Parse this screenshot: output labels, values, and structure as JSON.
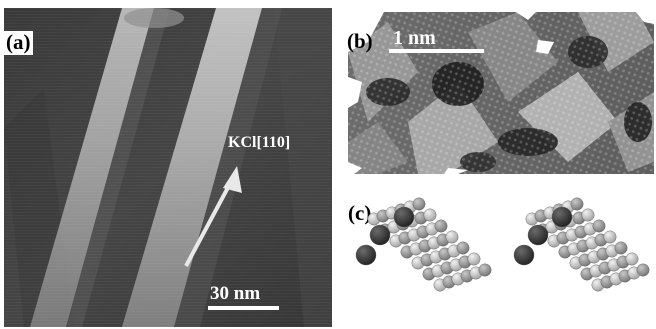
{
  "figure": {
    "panel_a": {
      "label": "(a)",
      "direction_label": "KCl[110]",
      "scale_label": "30 nm"
    },
    "panel_b": {
      "label": "(b)",
      "scale_label": "1 nm"
    },
    "panel_c": {
      "label": "(c)"
    }
  }
}
